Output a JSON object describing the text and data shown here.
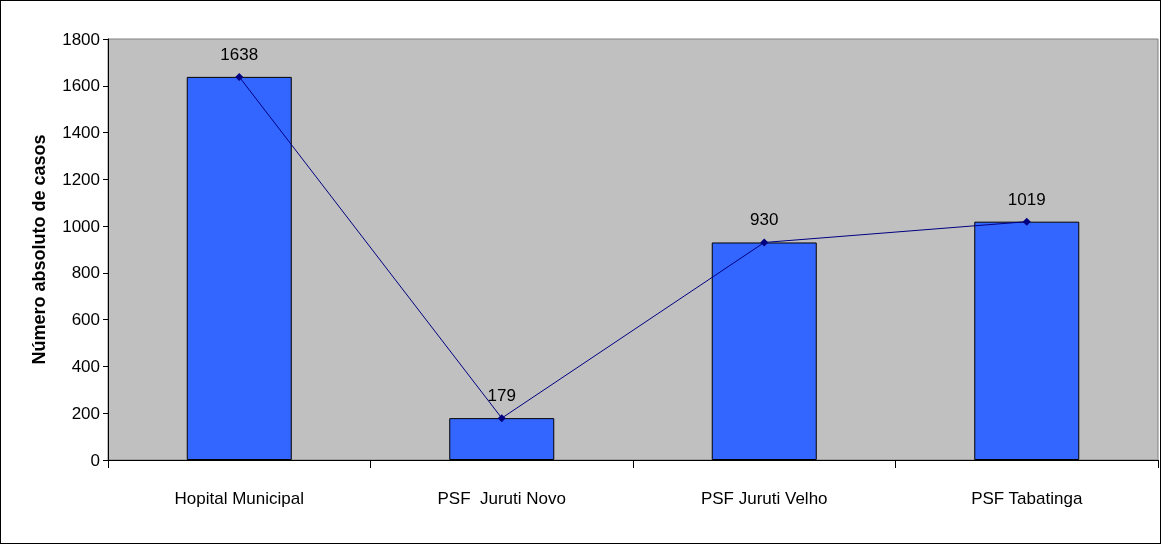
{
  "chart_data": {
    "type": "bar",
    "ylabel": "Número absoluto de casos",
    "categories": [
      "Hopital Municipal",
      "PSF  Juruti Novo",
      "PSF Juruti Velho",
      "PSF Tabatinga"
    ],
    "series": [
      {
        "color": "#3366ff",
        "values": [
          1638,
          179,
          930,
          1019
        ]
      },
      {
        "type": "line",
        "color": "#000080",
        "values": [
          1638,
          179,
          930,
          1019
        ],
        "value_labels": [
          "1638",
          "179",
          "930",
          "1019"
        ],
        "marker": "diamond",
        "line_style": "solid"
      }
    ],
    "ylim": [
      0,
      1800
    ],
    "yticks": [
      0,
      200,
      400,
      600,
      800,
      1000,
      1200,
      1400,
      1600,
      1800
    ],
    "grid": false
  }
}
